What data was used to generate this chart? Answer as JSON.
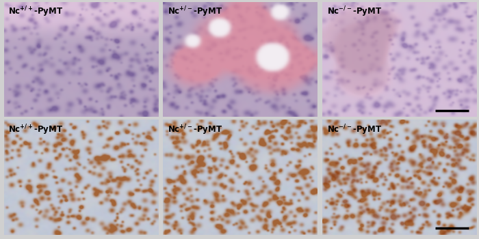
{
  "labels_row1": [
    [
      "Nc",
      "+/+",
      "-PyMT"
    ],
    [
      "Nc",
      "+/-",
      "-PyMT"
    ],
    [
      "Nc",
      "-/-",
      "-PyMT"
    ]
  ],
  "labels_row2": [
    [
      "Nc",
      "+/+",
      "-PyMT"
    ],
    [
      "Nc",
      "+/-",
      "-PyMT"
    ],
    [
      "Nc",
      "-/-",
      "-PyMT"
    ]
  ],
  "figsize": [
    7.0,
    3.5
  ],
  "dpi": 100,
  "label_color": "#000000",
  "label_fontsize": 8.5,
  "outer_bg": "#d0d0d0",
  "panel_border": "#cccccc"
}
